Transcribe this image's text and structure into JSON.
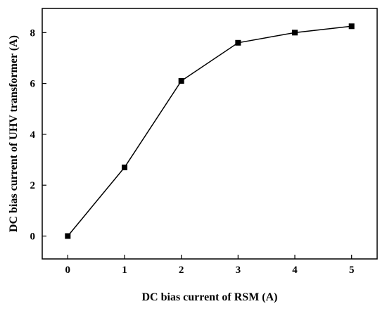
{
  "chart_data": {
    "type": "line",
    "title": "",
    "xlabel": "DC bias current of RSM (A)",
    "ylabel": "DC bias current of UHV transformer (A)",
    "x": [
      0,
      1,
      2,
      3,
      4,
      5
    ],
    "series": [
      {
        "values": [
          0.0,
          2.7,
          6.1,
          7.6,
          8.0,
          8.25
        ]
      }
    ],
    "xlim": [
      -0.45,
      5.45
    ],
    "ylim": [
      -0.9,
      8.95
    ],
    "xticks": [
      "0",
      "1",
      "2",
      "3",
      "4",
      "5"
    ],
    "yticks": [
      "0",
      "2",
      "4",
      "6",
      "8"
    ],
    "grid": false,
    "legend": "none",
    "colors": {
      "line": "#000000",
      "marker": "#000000"
    }
  }
}
